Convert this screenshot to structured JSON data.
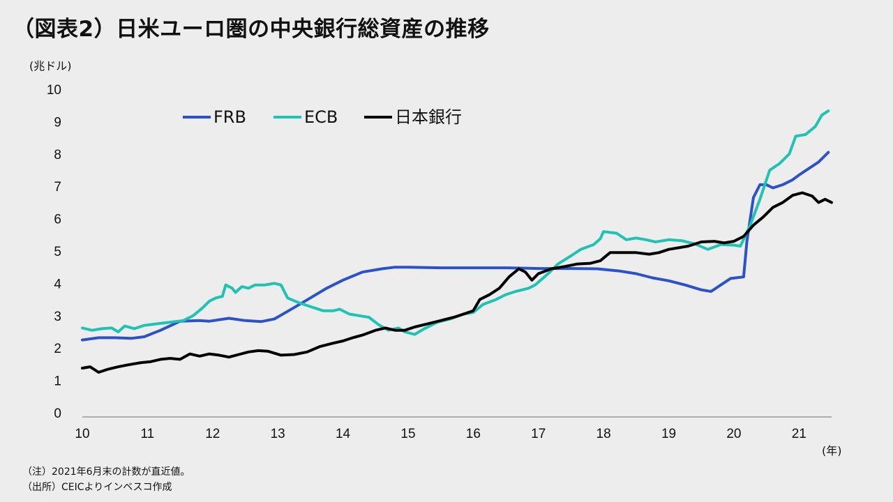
{
  "chart_data": {
    "type": "line",
    "title": "（図表2）日米ユーロ圏の中央銀行総資産の推移",
    "ylabel": "(兆ドル)",
    "xlabel": "(年)",
    "ylim": [
      0,
      10
    ],
    "yticks": [
      "0",
      "1",
      "2",
      "3",
      "4",
      "5",
      "6",
      "7",
      "8",
      "9",
      "10"
    ],
    "xlim": [
      2010,
      2021.5
    ],
    "xticks": [
      {
        "x": 2010,
        "label": "10"
      },
      {
        "x": 2011,
        "label": "11"
      },
      {
        "x": 2012,
        "label": "12"
      },
      {
        "x": 2013,
        "label": "13"
      },
      {
        "x": 2014,
        "label": "14"
      },
      {
        "x": 2015,
        "label": "15"
      },
      {
        "x": 2016,
        "label": "16"
      },
      {
        "x": 2017,
        "label": "17"
      },
      {
        "x": 2018,
        "label": "18"
      },
      {
        "x": 2019,
        "label": "19"
      },
      {
        "x": 2020,
        "label": "20"
      },
      {
        "x": 2021,
        "label": "21"
      }
    ],
    "grid": false,
    "legend": "top-left",
    "series": [
      {
        "name": "FRB",
        "color": "#2b52c8",
        "points": [
          [
            2010.0,
            2.25
          ],
          [
            2010.25,
            2.32
          ],
          [
            2010.5,
            2.32
          ],
          [
            2010.75,
            2.3
          ],
          [
            2010.95,
            2.35
          ],
          [
            2011.2,
            2.55
          ],
          [
            2011.5,
            2.83
          ],
          [
            2011.8,
            2.85
          ],
          [
            2011.95,
            2.83
          ],
          [
            2012.25,
            2.92
          ],
          [
            2012.5,
            2.85
          ],
          [
            2012.75,
            2.82
          ],
          [
            2012.95,
            2.9
          ],
          [
            2013.25,
            3.25
          ],
          [
            2013.5,
            3.55
          ],
          [
            2013.75,
            3.85
          ],
          [
            2014.0,
            4.1
          ],
          [
            2014.3,
            4.35
          ],
          [
            2014.6,
            4.45
          ],
          [
            2014.8,
            4.5
          ],
          [
            2015.0,
            4.5
          ],
          [
            2015.5,
            4.48
          ],
          [
            2016.0,
            4.48
          ],
          [
            2016.5,
            4.48
          ],
          [
            2017.0,
            4.46
          ],
          [
            2017.5,
            4.46
          ],
          [
            2017.9,
            4.45
          ],
          [
            2018.25,
            4.38
          ],
          [
            2018.5,
            4.3
          ],
          [
            2018.75,
            4.17
          ],
          [
            2019.0,
            4.08
          ],
          [
            2019.25,
            3.95
          ],
          [
            2019.5,
            3.8
          ],
          [
            2019.65,
            3.75
          ],
          [
            2019.8,
            3.95
          ],
          [
            2019.95,
            4.15
          ],
          [
            2020.15,
            4.2
          ],
          [
            2020.2,
            5.3
          ],
          [
            2020.3,
            6.65
          ],
          [
            2020.4,
            7.05
          ],
          [
            2020.5,
            7.05
          ],
          [
            2020.6,
            6.95
          ],
          [
            2020.75,
            7.05
          ],
          [
            2020.9,
            7.2
          ],
          [
            2021.0,
            7.35
          ],
          [
            2021.15,
            7.55
          ],
          [
            2021.3,
            7.75
          ],
          [
            2021.45,
            8.05
          ]
        ]
      },
      {
        "name": "ECB",
        "color": "#1fc3b3",
        "points": [
          [
            2010.0,
            2.62
          ],
          [
            2010.15,
            2.55
          ],
          [
            2010.3,
            2.6
          ],
          [
            2010.45,
            2.62
          ],
          [
            2010.55,
            2.5
          ],
          [
            2010.65,
            2.68
          ],
          [
            2010.8,
            2.6
          ],
          [
            2010.95,
            2.7
          ],
          [
            2011.15,
            2.75
          ],
          [
            2011.35,
            2.8
          ],
          [
            2011.55,
            2.85
          ],
          [
            2011.7,
            3.0
          ],
          [
            2011.85,
            3.25
          ],
          [
            2011.95,
            3.45
          ],
          [
            2012.05,
            3.55
          ],
          [
            2012.15,
            3.6
          ],
          [
            2012.2,
            3.95
          ],
          [
            2012.3,
            3.85
          ],
          [
            2012.35,
            3.72
          ],
          [
            2012.45,
            3.9
          ],
          [
            2012.55,
            3.85
          ],
          [
            2012.65,
            3.95
          ],
          [
            2012.8,
            3.95
          ],
          [
            2012.95,
            4.0
          ],
          [
            2013.05,
            3.95
          ],
          [
            2013.15,
            3.55
          ],
          [
            2013.3,
            3.42
          ],
          [
            2013.4,
            3.35
          ],
          [
            2013.55,
            3.25
          ],
          [
            2013.7,
            3.15
          ],
          [
            2013.85,
            3.15
          ],
          [
            2013.95,
            3.2
          ],
          [
            2014.1,
            3.05
          ],
          [
            2014.25,
            3.0
          ],
          [
            2014.4,
            2.95
          ],
          [
            2014.55,
            2.72
          ],
          [
            2014.7,
            2.55
          ],
          [
            2014.85,
            2.62
          ],
          [
            2014.95,
            2.5
          ],
          [
            2015.1,
            2.42
          ],
          [
            2015.25,
            2.6
          ],
          [
            2015.45,
            2.8
          ],
          [
            2015.65,
            2.9
          ],
          [
            2015.85,
            3.05
          ],
          [
            2016.0,
            3.1
          ],
          [
            2016.15,
            3.35
          ],
          [
            2016.35,
            3.5
          ],
          [
            2016.5,
            3.65
          ],
          [
            2016.65,
            3.75
          ],
          [
            2016.85,
            3.85
          ],
          [
            2016.95,
            3.95
          ],
          [
            2017.15,
            4.3
          ],
          [
            2017.3,
            4.6
          ],
          [
            2017.5,
            4.85
          ],
          [
            2017.65,
            5.05
          ],
          [
            2017.85,
            5.2
          ],
          [
            2017.95,
            5.38
          ],
          [
            2018.0,
            5.6
          ],
          [
            2018.2,
            5.55
          ],
          [
            2018.35,
            5.35
          ],
          [
            2018.5,
            5.4
          ],
          [
            2018.65,
            5.35
          ],
          [
            2018.8,
            5.28
          ],
          [
            2019.0,
            5.35
          ],
          [
            2019.2,
            5.32
          ],
          [
            2019.4,
            5.22
          ],
          [
            2019.6,
            5.05
          ],
          [
            2019.8,
            5.2
          ],
          [
            2020.0,
            5.18
          ],
          [
            2020.1,
            5.15
          ],
          [
            2020.25,
            5.8
          ],
          [
            2020.4,
            6.6
          ],
          [
            2020.55,
            7.5
          ],
          [
            2020.7,
            7.7
          ],
          [
            2020.85,
            8.0
          ],
          [
            2020.95,
            8.55
          ],
          [
            2021.1,
            8.6
          ],
          [
            2021.25,
            8.85
          ],
          [
            2021.35,
            9.2
          ],
          [
            2021.45,
            9.33
          ]
        ]
      },
      {
        "name": "日本銀行",
        "color": "#000000",
        "points": [
          [
            2010.0,
            1.38
          ],
          [
            2010.12,
            1.42
          ],
          [
            2010.25,
            1.25
          ],
          [
            2010.4,
            1.35
          ],
          [
            2010.55,
            1.42
          ],
          [
            2010.7,
            1.48
          ],
          [
            2010.9,
            1.55
          ],
          [
            2011.05,
            1.58
          ],
          [
            2011.2,
            1.65
          ],
          [
            2011.35,
            1.68
          ],
          [
            2011.5,
            1.65
          ],
          [
            2011.65,
            1.82
          ],
          [
            2011.8,
            1.75
          ],
          [
            2011.95,
            1.82
          ],
          [
            2012.1,
            1.78
          ],
          [
            2012.25,
            1.72
          ],
          [
            2012.4,
            1.8
          ],
          [
            2012.55,
            1.88
          ],
          [
            2012.7,
            1.92
          ],
          [
            2012.85,
            1.9
          ],
          [
            2013.05,
            1.78
          ],
          [
            2013.25,
            1.8
          ],
          [
            2013.45,
            1.88
          ],
          [
            2013.65,
            2.05
          ],
          [
            2013.85,
            2.15
          ],
          [
            2014.0,
            2.22
          ],
          [
            2014.15,
            2.32
          ],
          [
            2014.3,
            2.4
          ],
          [
            2014.5,
            2.55
          ],
          [
            2014.65,
            2.62
          ],
          [
            2014.8,
            2.55
          ],
          [
            2014.95,
            2.55
          ],
          [
            2015.1,
            2.65
          ],
          [
            2015.3,
            2.75
          ],
          [
            2015.5,
            2.85
          ],
          [
            2015.7,
            2.95
          ],
          [
            2015.85,
            3.05
          ],
          [
            2016.0,
            3.15
          ],
          [
            2016.1,
            3.5
          ],
          [
            2016.25,
            3.65
          ],
          [
            2016.4,
            3.85
          ],
          [
            2016.55,
            4.2
          ],
          [
            2016.7,
            4.45
          ],
          [
            2016.8,
            4.35
          ],
          [
            2016.9,
            4.1
          ],
          [
            2017.0,
            4.3
          ],
          [
            2017.2,
            4.45
          ],
          [
            2017.4,
            4.52
          ],
          [
            2017.6,
            4.6
          ],
          [
            2017.8,
            4.62
          ],
          [
            2017.95,
            4.7
          ],
          [
            2018.1,
            4.95
          ],
          [
            2018.3,
            4.95
          ],
          [
            2018.5,
            4.95
          ],
          [
            2018.7,
            4.9
          ],
          [
            2018.85,
            4.95
          ],
          [
            2019.0,
            5.05
          ],
          [
            2019.15,
            5.1
          ],
          [
            2019.3,
            5.15
          ],
          [
            2019.5,
            5.28
          ],
          [
            2019.7,
            5.3
          ],
          [
            2019.85,
            5.25
          ],
          [
            2020.0,
            5.3
          ],
          [
            2020.15,
            5.45
          ],
          [
            2020.3,
            5.8
          ],
          [
            2020.45,
            6.05
          ],
          [
            2020.6,
            6.35
          ],
          [
            2020.75,
            6.5
          ],
          [
            2020.9,
            6.72
          ],
          [
            2021.05,
            6.8
          ],
          [
            2021.2,
            6.7
          ],
          [
            2021.3,
            6.5
          ],
          [
            2021.4,
            6.6
          ],
          [
            2021.5,
            6.5
          ]
        ]
      }
    ]
  },
  "notes": {
    "note1": "（注）2021年6月末の計数が直近値。",
    "note2": "（出所）CEICよりインベスコ作成"
  }
}
